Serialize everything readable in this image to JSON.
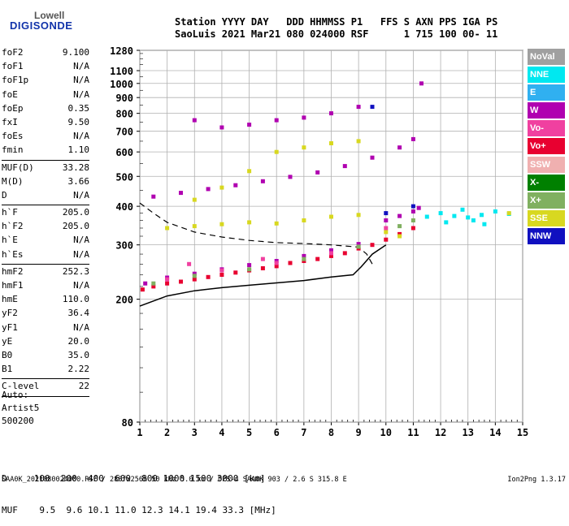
{
  "logo": {
    "line1": "Lowell",
    "line2": "DIGISONDE"
  },
  "header": {
    "labels": "Station YYYY DAY   DDD HHMMSS P1   FFS S AXN PPS IGA PS",
    "values": "SaoLuis 2021 Mar21 080 024000 RSF      1 715 100 00- 11"
  },
  "params": [
    {
      "name": "foF2",
      "value": "9.100"
    },
    {
      "name": "foF1",
      "value": "N/A"
    },
    {
      "name": "foF1p",
      "value": "N/A"
    },
    {
      "name": "foE",
      "value": "N/A"
    },
    {
      "name": "foEp",
      "value": "0.35"
    },
    {
      "name": "fxI",
      "value": "9.50"
    },
    {
      "name": "foEs",
      "value": "N/A"
    },
    {
      "name": "fmin",
      "value": "1.10"
    },
    {
      "sep": true
    },
    {
      "name": "MUF(D)",
      "value": "33.28"
    },
    {
      "name": "M(D)",
      "value": "3.66"
    },
    {
      "name": "D",
      "value": "N/A"
    },
    {
      "sep": true
    },
    {
      "name": "h`F",
      "value": "205.0"
    },
    {
      "name": "h`F2",
      "value": "205.0"
    },
    {
      "name": "h`E",
      "value": "N/A"
    },
    {
      "name": "h`Es",
      "value": "N/A"
    },
    {
      "sep": true
    },
    {
      "name": "hmF2",
      "value": "252.3"
    },
    {
      "name": "hmF1",
      "value": "N/A"
    },
    {
      "name": "hmE",
      "value": "110.0"
    },
    {
      "name": "yF2",
      "value": "36.4"
    },
    {
      "name": "yF1",
      "value": "N/A"
    },
    {
      "name": "yE",
      "value": "20.0"
    },
    {
      "name": "B0",
      "value": "35.0"
    },
    {
      "name": "B1",
      "value": "2.22"
    },
    {
      "sep": true
    },
    {
      "name": "C-level",
      "value": "22"
    },
    {
      "sep": true
    }
  ],
  "auto": {
    "line1": "Auto:",
    "line2": "Artist5",
    "line3": "500200"
  },
  "legend": [
    {
      "label": "NoVal",
      "color": "#a0a0a0"
    },
    {
      "label": "NNE",
      "color": "#00e8f0"
    },
    {
      "label": "E",
      "color": "#30b0f0"
    },
    {
      "label": "W",
      "color": "#b000b0"
    },
    {
      "label": "Vo-",
      "color": "#f040a0"
    },
    {
      "label": "Vo+",
      "color": "#e80030"
    },
    {
      "label": "SSW",
      "color": "#f0b0b0"
    },
    {
      "label": "X-",
      "color": "#008000"
    },
    {
      "label": "X+",
      "color": "#80b060"
    },
    {
      "label": "SSE",
      "color": "#d8d820"
    },
    {
      "label": "NNW",
      "color": "#1010c0"
    }
  ],
  "dmuf": {
    "d_row": "D     100  200  400  600  800 1000 1500 3000 [km]",
    "muf_row": "MUF    9.5  9.6 10.1 11.0 12.3 14.1 19.4 33.3 [MHz]"
  },
  "footer": {
    "left": "SAA0K_2021080024000.RSF / 280fx256h 50 kHz 5.0 km / DPS-4 SAA0K 903 / 2.6 S 315.8 E",
    "right": "Ion2Png 1.3.17"
  },
  "chart_data": {
    "type": "scatter",
    "x_ticks": [
      "1",
      "2",
      "3",
      "4",
      "5",
      "6",
      "7",
      "8",
      "9",
      "10",
      "11",
      "12",
      "13",
      "14",
      "15"
    ],
    "y_ticks": [
      "80",
      "200",
      "300",
      "400",
      "500",
      "600",
      "700",
      "800",
      "900",
      "1000",
      "1100",
      "1280"
    ],
    "xlim": [
      1,
      15
    ],
    "ylim": [
      80,
      1280
    ],
    "y_scale": "log",
    "grid": true,
    "series": [
      {
        "name": "Vo+",
        "color": "#e80030",
        "points": [
          [
            1.1,
            215
          ],
          [
            1.5,
            220
          ],
          [
            2,
            225
          ],
          [
            2.5,
            228
          ],
          [
            3,
            232
          ],
          [
            3.5,
            236
          ],
          [
            4,
            240
          ],
          [
            4.5,
            244
          ],
          [
            5,
            248
          ],
          [
            5.5,
            252
          ],
          [
            6,
            256
          ],
          [
            6.5,
            262
          ],
          [
            7,
            266
          ],
          [
            7.5,
            270
          ],
          [
            8,
            276
          ],
          [
            8.5,
            282
          ],
          [
            9,
            292
          ],
          [
            9.5,
            300
          ],
          [
            10,
            312
          ],
          [
            10.5,
            325
          ],
          [
            11,
            340
          ]
        ]
      },
      {
        "name": "W",
        "color": "#b000b0",
        "points": [
          [
            1.2,
            225
          ],
          [
            2,
            235
          ],
          [
            3,
            242
          ],
          [
            4,
            250
          ],
          [
            5,
            258
          ],
          [
            6,
            266
          ],
          [
            7,
            276
          ],
          [
            8,
            288
          ],
          [
            9,
            302
          ],
          [
            10,
            360
          ],
          [
            10.5,
            372
          ],
          [
            11,
            385
          ],
          [
            11.2,
            395
          ],
          [
            1.5,
            430
          ],
          [
            2.5,
            442
          ],
          [
            3.5,
            455
          ],
          [
            4.5,
            468
          ],
          [
            5.5,
            482
          ],
          [
            6.5,
            498
          ],
          [
            7.5,
            515
          ],
          [
            8.5,
            540
          ],
          [
            9.5,
            575
          ],
          [
            10.5,
            620
          ],
          [
            11,
            660
          ],
          [
            3,
            760
          ],
          [
            4,
            720
          ],
          [
            5,
            735
          ],
          [
            6,
            760
          ],
          [
            7,
            775
          ],
          [
            8,
            800
          ],
          [
            9,
            840
          ],
          [
            11.3,
            1000
          ]
        ]
      },
      {
        "name": "NNE",
        "color": "#00e8f0",
        "points": [
          [
            11.5,
            370
          ],
          [
            12,
            380
          ],
          [
            12.5,
            372
          ],
          [
            13,
            368
          ],
          [
            13.5,
            375
          ],
          [
            14,
            385
          ],
          [
            14.5,
            378
          ],
          [
            12.2,
            355
          ],
          [
            13.2,
            360
          ],
          [
            12.8,
            390
          ],
          [
            13.6,
            350
          ]
        ]
      },
      {
        "name": "SSE",
        "color": "#d8d820",
        "points": [
          [
            2,
            340
          ],
          [
            3,
            345
          ],
          [
            4,
            350
          ],
          [
            5,
            355
          ],
          [
            6,
            352
          ],
          [
            7,
            360
          ],
          [
            8,
            370
          ],
          [
            9,
            375
          ],
          [
            14.5,
            380
          ],
          [
            3,
            420
          ],
          [
            4,
            460
          ],
          [
            5,
            520
          ],
          [
            6,
            600
          ],
          [
            7,
            620
          ],
          [
            8,
            640
          ],
          [
            9,
            650
          ],
          [
            10,
            330
          ],
          [
            10.5,
            320
          ]
        ]
      },
      {
        "name": "X+",
        "color": "#80b060",
        "points": [
          [
            1.5,
            225
          ],
          [
            3,
            238
          ],
          [
            5,
            250
          ],
          [
            7,
            270
          ],
          [
            9,
            296
          ],
          [
            10.5,
            345
          ],
          [
            11,
            360
          ]
        ]
      },
      {
        "name": "Vo-",
        "color": "#f040a0",
        "points": [
          [
            2,
            232
          ],
          [
            4,
            248
          ],
          [
            6,
            262
          ],
          [
            8,
            282
          ],
          [
            10,
            340
          ],
          [
            2.8,
            260
          ],
          [
            5.5,
            270
          ]
        ]
      },
      {
        "name": "NNW",
        "color": "#1010c0",
        "points": [
          [
            9.5,
            840
          ],
          [
            11,
            400
          ],
          [
            10,
            380
          ]
        ]
      }
    ],
    "profile": {
      "points": [
        [
          1,
          190
        ],
        [
          2,
          205
        ],
        [
          3,
          213
        ],
        [
          4,
          218
        ],
        [
          5,
          222
        ],
        [
          6,
          226
        ],
        [
          7,
          230
        ],
        [
          8,
          236
        ],
        [
          8.8,
          240
        ],
        [
          9.1,
          255
        ],
        [
          9.5,
          280
        ],
        [
          10,
          300
        ]
      ]
    },
    "dashed": {
      "points": [
        [
          1,
          410
        ],
        [
          1.5,
          380
        ],
        [
          2,
          355
        ],
        [
          3,
          330
        ],
        [
          4,
          318
        ],
        [
          5,
          310
        ],
        [
          6,
          305
        ],
        [
          7,
          303
        ],
        [
          8,
          300
        ],
        [
          9,
          295
        ],
        [
          9.3,
          280
        ],
        [
          9.5,
          260
        ]
      ]
    }
  }
}
